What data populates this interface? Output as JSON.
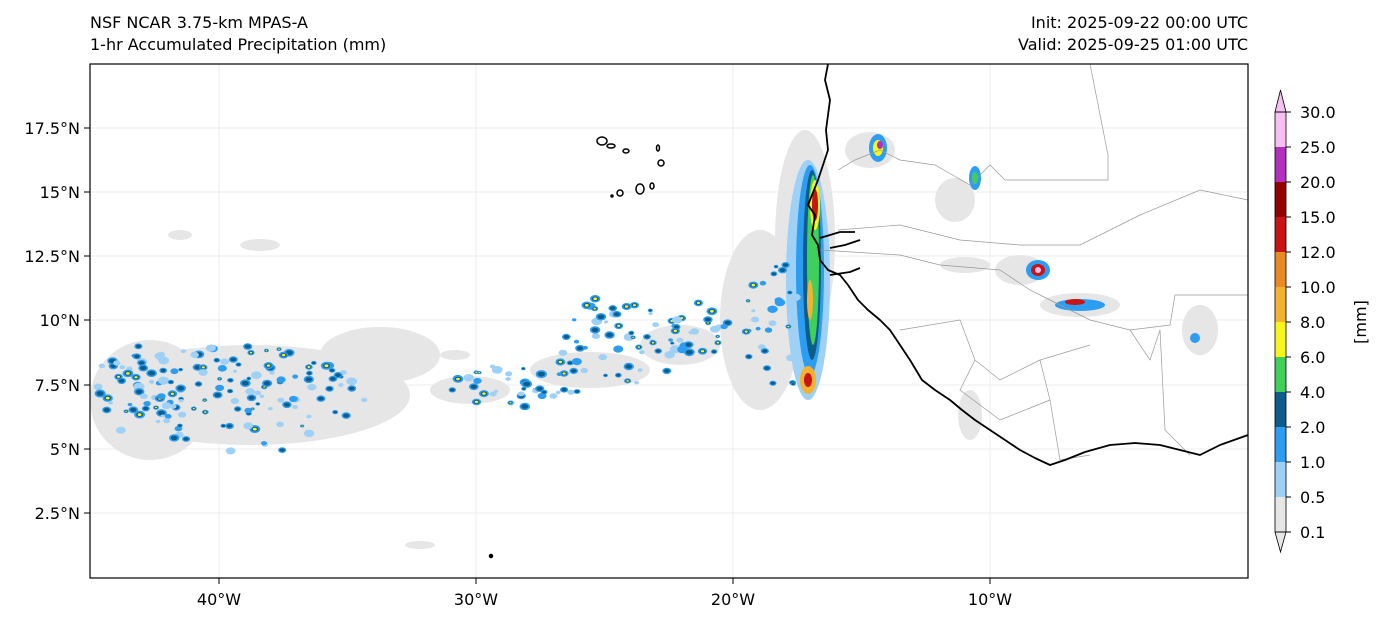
{
  "title": {
    "model": "NSF NCAR 3.75-km MPAS-A",
    "field": "1-hr Accumulated Precipitation (mm)",
    "init": "Init: 2025-09-22 00:00 UTC",
    "valid": "Valid: 2025-09-25 01:00 UTC"
  },
  "axes": {
    "lat_ticks": [
      "17.5°N",
      "15°N",
      "12.5°N",
      "10°N",
      "7.5°N",
      "5°N",
      "2.5°N"
    ],
    "lon_ticks": [
      "40°W",
      "30°W",
      "20°W",
      "10°W"
    ]
  },
  "colorbar": {
    "unit_label": "[mm]",
    "levels": [
      "0.1",
      "0.5",
      "1.0",
      "2.0",
      "4.0",
      "6.0",
      "8.0",
      "10.0",
      "12.0",
      "15.0",
      "20.0",
      "25.0",
      "30.0"
    ],
    "colors": [
      "#e6e6e6",
      "#9fd0f5",
      "#2c9df0",
      "#0c5c8c",
      "#3fd05a",
      "#f7f51a",
      "#f4b22e",
      "#e98a22",
      "#c81414",
      "#960000",
      "#b32fbd",
      "#f6c0f2"
    ]
  },
  "legend_colors": {
    "coast": "#000000",
    "border": "#999999",
    "light_rain": "#e6e6e6"
  }
}
